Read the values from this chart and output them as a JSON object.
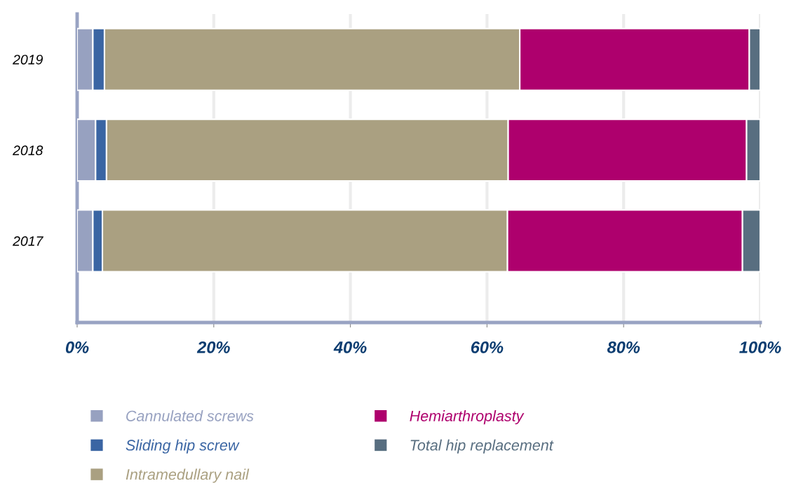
{
  "chart_data": {
    "type": "bar",
    "orientation": "horizontal",
    "stacked": true,
    "categories": [
      "2019",
      "2018",
      "2017"
    ],
    "series": [
      {
        "name": "Cannulated screws",
        "color": "#97a1c0",
        "values": [
          2.3,
          2.7,
          2.3
        ]
      },
      {
        "name": "Sliding hip screw",
        "color": "#3a65a3",
        "values": [
          1.7,
          1.6,
          1.4
        ]
      },
      {
        "name": "Intramedullary nail",
        "color": "#aaa081",
        "values": [
          60.8,
          58.8,
          59.3
        ]
      },
      {
        "name": "Hemiarthroplasty",
        "color": "#ae006d",
        "values": [
          33.6,
          34.9,
          34.4
        ]
      },
      {
        "name": "Total hip replacement",
        "color": "#586e80",
        "values": [
          1.6,
          2.0,
          2.6
        ]
      }
    ],
    "xlim": [
      0,
      100
    ],
    "xticks": [
      {
        "value": 0,
        "label": "0%"
      },
      {
        "value": 20,
        "label": "20%"
      },
      {
        "value": 40,
        "label": "40%"
      },
      {
        "value": 60,
        "label": "60%"
      },
      {
        "value": 80,
        "label": "80%"
      },
      {
        "value": 100,
        "label": "100%"
      }
    ],
    "grid": "x",
    "legend": "bottom"
  }
}
